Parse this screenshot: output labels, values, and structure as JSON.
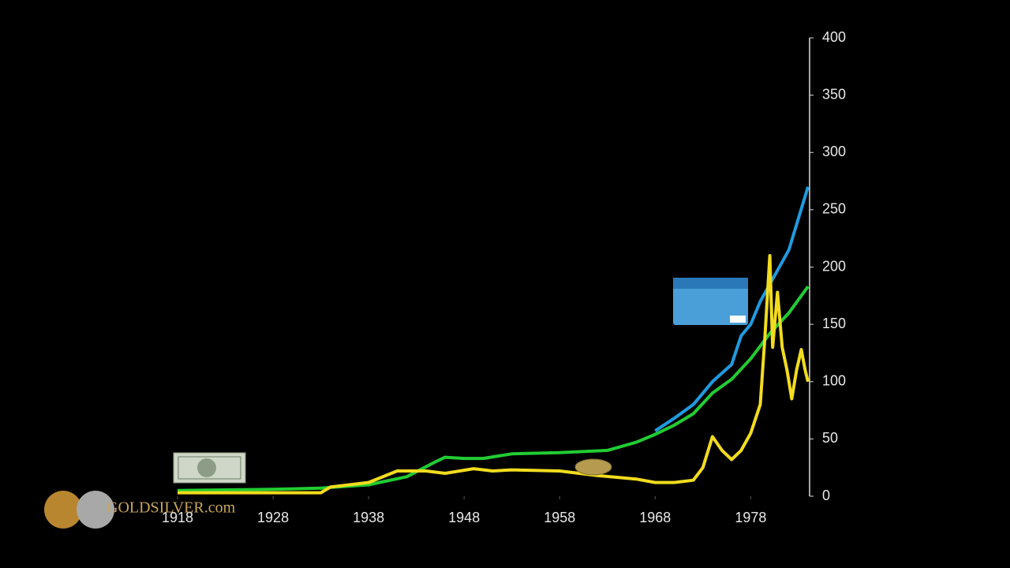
{
  "chart_data": {
    "type": "line",
    "watermark": "GOLDSILVER.com",
    "xlim": [
      1918,
      1984
    ],
    "xticks": [
      1918,
      1928,
      1938,
      1948,
      1958,
      1968,
      1978
    ],
    "ylim": [
      0,
      400
    ],
    "yticks": [
      0,
      50,
      100,
      150,
      200,
      250,
      300,
      350,
      400
    ],
    "series": [
      {
        "color": "#22cc33",
        "x": [
          1918,
          1928,
          1933,
          1938,
          1942,
          1945,
          1946,
          1948,
          1950,
          1953,
          1958,
          1963,
          1966,
          1968,
          1970,
          1972,
          1974,
          1976,
          1978,
          1980,
          1982,
          1984
        ],
        "values": [
          5,
          6,
          7,
          10,
          17,
          30,
          34,
          33,
          33,
          37,
          38,
          40,
          47,
          54,
          62,
          72,
          90,
          102,
          120,
          142,
          160,
          183
        ]
      },
      {
        "color": "#1f9be0",
        "x": [
          1968,
          1970,
          1972,
          1974,
          1976,
          1977,
          1978,
          1979,
          1980,
          1982,
          1984
        ],
        "values": [
          57,
          68,
          80,
          100,
          115,
          140,
          150,
          170,
          185,
          215,
          270
        ]
      },
      {
        "color": "#f2dc1e",
        "x": [
          1918,
          1933,
          1934,
          1938,
          1941,
          1944,
          1946,
          1949,
          1951,
          1953,
          1958,
          1962,
          1966,
          1968,
          1970,
          1972,
          1973,
          1974,
          1975,
          1976,
          1977,
          1978,
          1979,
          1979.5,
          1980,
          1980.3,
          1980.8,
          1981.3,
          1981.8,
          1982.3,
          1982.8,
          1983.3,
          1983.7,
          1984
        ],
        "values": [
          3,
          3,
          8,
          12,
          22,
          22,
          20,
          24,
          22,
          23,
          22,
          18,
          15,
          12,
          12,
          14,
          25,
          52,
          40,
          32,
          40,
          55,
          80,
          140,
          210,
          130,
          178,
          130,
          110,
          85,
          110,
          128,
          110,
          100
        ]
      }
    ]
  }
}
